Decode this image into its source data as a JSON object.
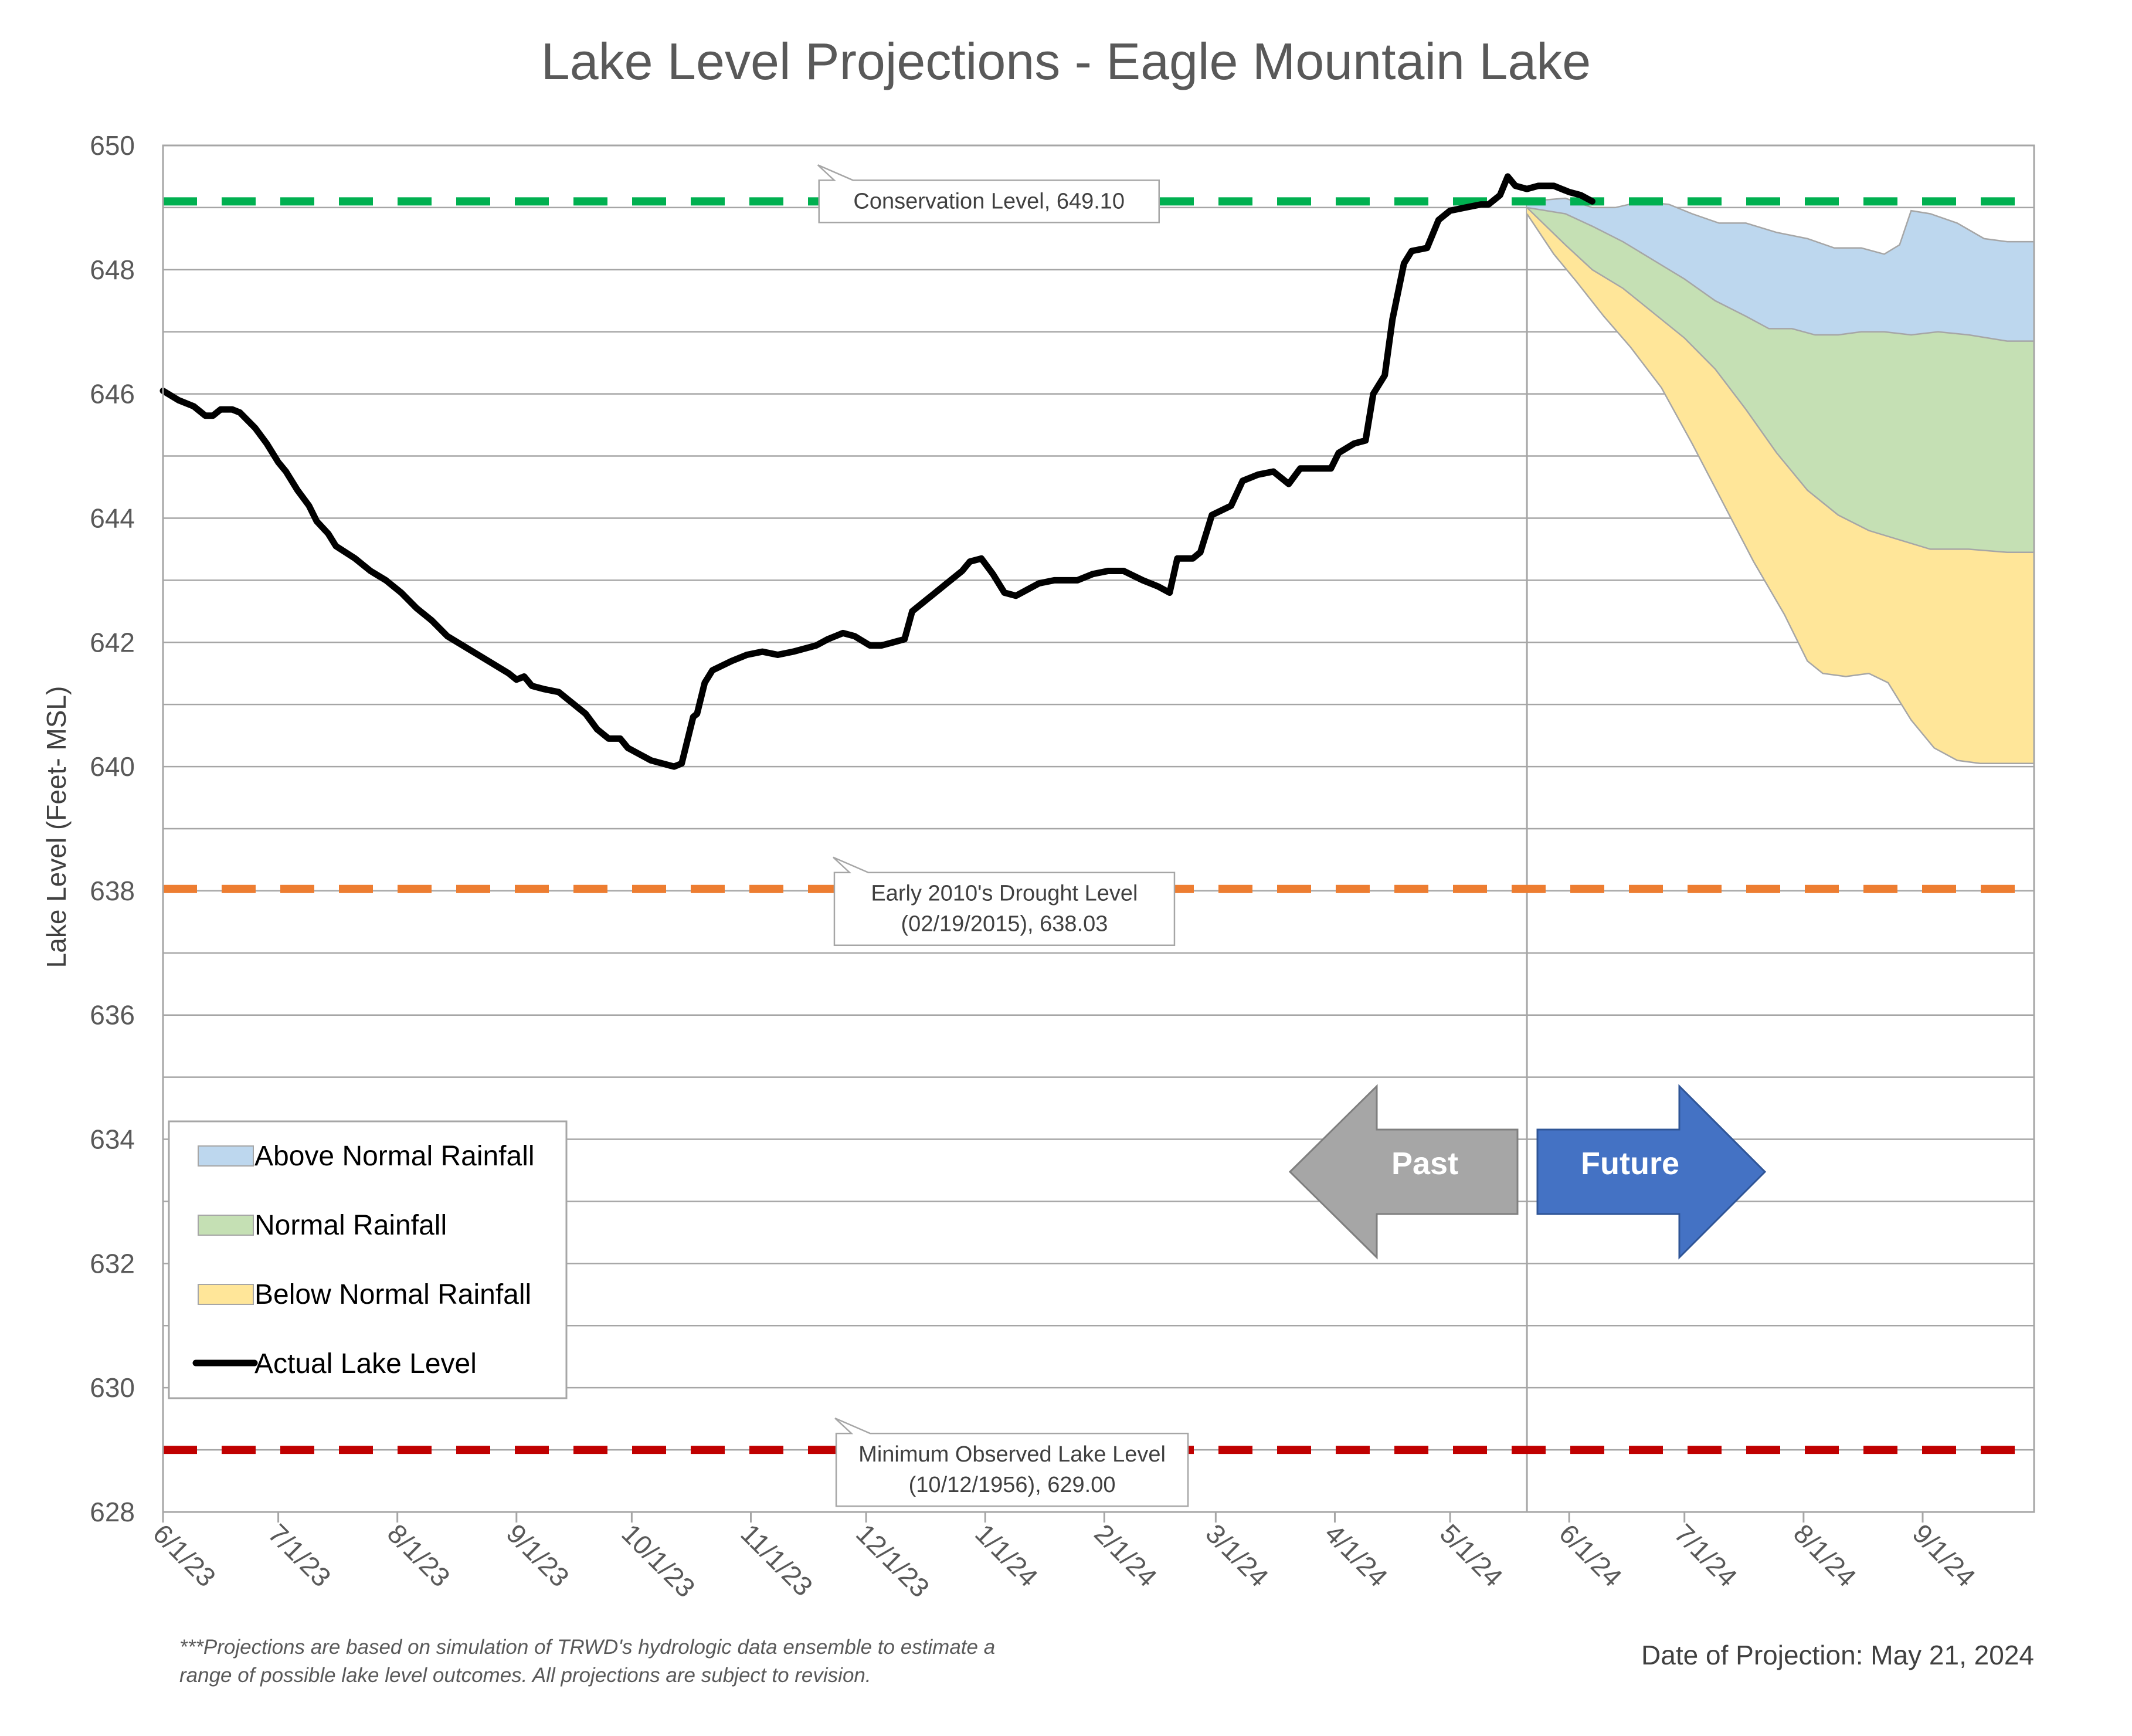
{
  "chart_data": {
    "type": "area",
    "title": "Lake Level Projections - Eagle Mountain Lake",
    "ylabel": "Lake Level (Feet- MSL)",
    "xlabel": "",
    "ylim": [
      628,
      650
    ],
    "y_ticks": [
      628,
      630,
      632,
      634,
      636,
      638,
      640,
      642,
      644,
      646,
      648,
      650
    ],
    "x_ticks": [
      "6/1/23",
      "7/1/23",
      "8/1/23",
      "9/1/23",
      "10/1/23",
      "11/1/23",
      "12/1/23",
      "1/1/24",
      "2/1/24",
      "3/1/24",
      "4/1/24",
      "5/1/24",
      "6/1/24",
      "7/1/24",
      "8/1/24",
      "9/1/24"
    ],
    "x_tick_days": [
      0,
      30,
      61,
      92,
      122,
      153,
      183,
      214,
      245,
      274,
      305,
      335,
      366,
      396,
      427,
      458
    ],
    "x_range_days": [
      0,
      487
    ],
    "grid": true,
    "divider_day": 355,
    "reference_lines": [
      {
        "name": "Conservation Level",
        "value": 649.1,
        "color": "#00b050",
        "label": [
          "Conservation Level, 649.10"
        ],
        "label_day": 215
      },
      {
        "name": "Early 2010's Drought Level",
        "value": 638.03,
        "color": "#ed7d31",
        "label": [
          "Early 2010's Drought Level",
          "(02/19/2015), 638.03"
        ],
        "label_day": 219
      },
      {
        "name": "Minimum Observed Lake Level",
        "value": 629.0,
        "color": "#c00000",
        "label": [
          "Minimum Observed Lake Level",
          "(10/12/1956), 629.00"
        ],
        "label_day": 221
      }
    ],
    "series": [
      {
        "name": "Actual Lake Level",
        "type": "line",
        "color": "#000000",
        "points": [
          [
            0,
            646.05
          ],
          [
            4,
            645.9
          ],
          [
            8,
            645.8
          ],
          [
            11,
            645.65
          ],
          [
            13,
            645.65
          ],
          [
            15,
            645.75
          ],
          [
            18,
            645.75
          ],
          [
            20,
            645.7
          ],
          [
            24,
            645.45
          ],
          [
            27,
            645.2
          ],
          [
            30,
            644.9
          ],
          [
            32,
            644.75
          ],
          [
            35,
            644.45
          ],
          [
            38,
            644.2
          ],
          [
            40,
            643.95
          ],
          [
            43,
            643.75
          ],
          [
            45,
            643.55
          ],
          [
            50,
            643.35
          ],
          [
            54,
            643.15
          ],
          [
            58,
            643.0
          ],
          [
            62,
            642.8
          ],
          [
            66,
            642.55
          ],
          [
            70,
            642.35
          ],
          [
            74,
            642.1
          ],
          [
            78,
            641.95
          ],
          [
            82,
            641.8
          ],
          [
            86,
            641.65
          ],
          [
            90,
            641.5
          ],
          [
            92,
            641.4
          ],
          [
            94,
            641.45
          ],
          [
            96,
            641.3
          ],
          [
            99,
            641.25
          ],
          [
            103,
            641.2
          ],
          [
            106,
            641.05
          ],
          [
            110,
            640.85
          ],
          [
            113,
            640.6
          ],
          [
            116,
            640.45
          ],
          [
            119,
            640.45
          ],
          [
            121,
            640.3
          ],
          [
            124,
            640.2
          ],
          [
            127,
            640.1
          ],
          [
            130,
            640.05
          ],
          [
            133,
            640.0
          ],
          [
            135,
            640.05
          ],
          [
            138,
            640.8
          ],
          [
            139,
            640.85
          ],
          [
            141,
            641.35
          ],
          [
            143,
            641.55
          ],
          [
            148,
            641.7
          ],
          [
            152,
            641.8
          ],
          [
            156,
            641.85
          ],
          [
            160,
            641.8
          ],
          [
            164,
            641.85
          ],
          [
            170,
            641.95
          ],
          [
            173,
            642.05
          ],
          [
            175,
            642.1
          ],
          [
            177,
            642.15
          ],
          [
            180,
            642.1
          ],
          [
            184,
            641.95
          ],
          [
            187,
            641.95
          ],
          [
            190,
            642.0
          ],
          [
            193,
            642.05
          ],
          [
            195,
            642.5
          ],
          [
            200,
            642.75
          ],
          [
            204,
            642.95
          ],
          [
            208,
            643.15
          ],
          [
            210,
            643.3
          ],
          [
            213,
            643.35
          ],
          [
            216,
            643.1
          ],
          [
            219,
            642.8
          ],
          [
            222,
            642.75
          ],
          [
            225,
            642.85
          ],
          [
            228,
            642.95
          ],
          [
            232,
            643.0
          ],
          [
            235,
            643.0
          ],
          [
            238,
            643.0
          ],
          [
            242,
            643.1
          ],
          [
            246,
            643.15
          ],
          [
            250,
            643.15
          ],
          [
            255,
            643.0
          ],
          [
            259,
            642.9
          ],
          [
            262,
            642.8
          ],
          [
            264,
            643.35
          ],
          [
            268,
            643.35
          ],
          [
            270,
            643.45
          ],
          [
            273,
            644.05
          ],
          [
            278,
            644.2
          ],
          [
            281,
            644.6
          ],
          [
            285,
            644.7
          ],
          [
            289,
            644.75
          ],
          [
            293,
            644.55
          ],
          [
            296,
            644.8
          ],
          [
            300,
            644.8
          ],
          [
            304,
            644.8
          ],
          [
            306,
            645.05
          ],
          [
            310,
            645.2
          ],
          [
            313,
            645.25
          ],
          [
            315,
            646.0
          ],
          [
            318,
            646.3
          ],
          [
            320,
            647.2
          ],
          [
            323,
            648.1
          ],
          [
            325,
            648.3
          ],
          [
            329,
            648.35
          ],
          [
            332,
            648.8
          ],
          [
            335,
            648.95
          ],
          [
            339,
            649.0
          ],
          [
            343,
            649.05
          ],
          [
            345,
            649.05
          ],
          [
            348,
            649.2
          ],
          [
            350,
            649.5
          ],
          [
            352,
            649.35
          ],
          [
            355,
            649.3
          ],
          [
            358,
            649.35
          ],
          [
            362,
            649.35
          ],
          [
            366,
            649.25
          ],
          [
            369,
            649.2
          ],
          [
            372,
            649.1
          ]
        ]
      },
      {
        "name": "Above Normal Rainfall",
        "type": "band",
        "fill": "#bdd7ee",
        "upper": [
          [
            355,
            649.1
          ],
          [
            365,
            649.15
          ],
          [
            372,
            649.0
          ],
          [
            378,
            649.0
          ],
          [
            385,
            649.1
          ],
          [
            392,
            649.05
          ],
          [
            398,
            648.9
          ],
          [
            405,
            648.75
          ],
          [
            412,
            648.75
          ],
          [
            420,
            648.6
          ],
          [
            428,
            648.5
          ],
          [
            435,
            648.35
          ],
          [
            442,
            648.35
          ],
          [
            448,
            648.25
          ],
          [
            452,
            648.4
          ],
          [
            455,
            648.95
          ],
          [
            460,
            648.9
          ],
          [
            467,
            648.75
          ],
          [
            474,
            648.5
          ],
          [
            480,
            648.45
          ],
          [
            487,
            648.45
          ]
        ],
        "lower": [
          [
            355,
            649.0
          ],
          [
            365,
            648.9
          ],
          [
            372,
            648.7
          ],
          [
            380,
            648.45
          ],
          [
            388,
            648.15
          ],
          [
            396,
            647.85
          ],
          [
            404,
            647.5
          ],
          [
            412,
            647.25
          ],
          [
            418,
            647.05
          ],
          [
            424,
            647.05
          ],
          [
            430,
            646.95
          ],
          [
            436,
            646.95
          ],
          [
            442,
            647.0
          ],
          [
            448,
            647.0
          ],
          [
            455,
            646.95
          ],
          [
            462,
            647.0
          ],
          [
            470,
            646.95
          ],
          [
            480,
            646.85
          ],
          [
            487,
            646.85
          ]
        ]
      },
      {
        "name": "Normal Rainfall",
        "type": "band",
        "fill": "#c5e0b4",
        "upper": [
          [
            355,
            649.0
          ],
          [
            365,
            648.9
          ],
          [
            372,
            648.7
          ],
          [
            380,
            648.45
          ],
          [
            388,
            648.15
          ],
          [
            396,
            647.85
          ],
          [
            404,
            647.5
          ],
          [
            412,
            647.25
          ],
          [
            418,
            647.05
          ],
          [
            424,
            647.05
          ],
          [
            430,
            646.95
          ],
          [
            436,
            646.95
          ],
          [
            442,
            647.0
          ],
          [
            448,
            647.0
          ],
          [
            455,
            646.95
          ],
          [
            462,
            647.0
          ],
          [
            470,
            646.95
          ],
          [
            480,
            646.85
          ],
          [
            487,
            646.85
          ]
        ],
        "lower": [
          [
            355,
            649.0
          ],
          [
            365,
            648.4
          ],
          [
            372,
            648.0
          ],
          [
            380,
            647.7
          ],
          [
            388,
            647.3
          ],
          [
            396,
            646.9
          ],
          [
            404,
            646.4
          ],
          [
            412,
            645.75
          ],
          [
            420,
            645.05
          ],
          [
            428,
            644.45
          ],
          [
            436,
            644.05
          ],
          [
            444,
            643.8
          ],
          [
            452,
            643.65
          ],
          [
            460,
            643.5
          ],
          [
            470,
            643.5
          ],
          [
            480,
            643.45
          ],
          [
            487,
            643.45
          ]
        ]
      },
      {
        "name": "Below Normal Rainfall",
        "type": "band",
        "fill": "#ffe699",
        "upper": [
          [
            355,
            649.0
          ],
          [
            365,
            648.4
          ],
          [
            372,
            648.0
          ],
          [
            380,
            647.7
          ],
          [
            388,
            647.3
          ],
          [
            396,
            646.9
          ],
          [
            404,
            646.4
          ],
          [
            412,
            645.75
          ],
          [
            420,
            645.05
          ],
          [
            428,
            644.45
          ],
          [
            436,
            644.05
          ],
          [
            444,
            643.8
          ],
          [
            452,
            643.65
          ],
          [
            460,
            643.5
          ],
          [
            470,
            643.5
          ],
          [
            480,
            643.45
          ],
          [
            487,
            643.45
          ]
        ],
        "lower": [
          [
            355,
            648.9
          ],
          [
            362,
            648.25
          ],
          [
            368,
            647.8
          ],
          [
            375,
            647.25
          ],
          [
            382,
            646.75
          ],
          [
            390,
            646.1
          ],
          [
            398,
            645.2
          ],
          [
            406,
            644.25
          ],
          [
            414,
            643.3
          ],
          [
            422,
            642.45
          ],
          [
            428,
            641.7
          ],
          [
            432,
            641.5
          ],
          [
            438,
            641.45
          ],
          [
            444,
            641.5
          ],
          [
            449,
            641.35
          ],
          [
            455,
            640.75
          ],
          [
            461,
            640.3
          ],
          [
            467,
            640.1
          ],
          [
            473,
            640.05
          ],
          [
            480,
            640.05
          ],
          [
            487,
            640.05
          ]
        ]
      }
    ],
    "legend": {
      "placement": "bottom-left",
      "entries": [
        "Above Normal Rainfall",
        "Normal Rainfall",
        "Below Normal Rainfall",
        "Actual Lake Level"
      ]
    },
    "annotations": {
      "past_label": "Past",
      "future_label": "Future",
      "past_color": "#a6a6a6",
      "future_color": "#4472c4"
    },
    "footnote": [
      "***Projections are based on simulation of TRWD's hydrologic data ensemble to estimate a",
      "range of possible lake level outcomes.  All projections are subject to revision."
    ],
    "projection_date": "Date of Projection: May 21, 2024"
  }
}
